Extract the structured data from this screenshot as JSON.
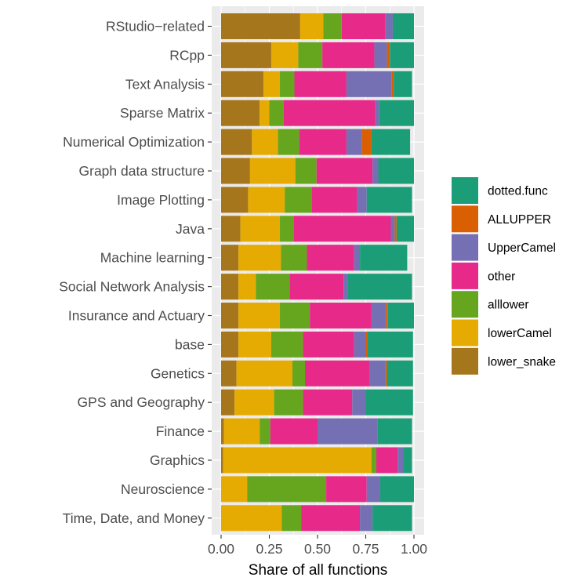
{
  "chart_data": {
    "type": "bar",
    "orientation": "horizontal",
    "stacked": true,
    "xlabel": "Share of all functions",
    "ylabel": "",
    "xlim": [
      0,
      1
    ],
    "x_ticks": [
      "0.00",
      "0.25",
      "0.50",
      "0.75",
      "1.00"
    ],
    "grid": true,
    "legend_position": "right",
    "categories": [
      "RStudio−related",
      "RCpp",
      "Text Analysis",
      "Sparse Matrix",
      "Numerical Optimization",
      "Graph data structure",
      "Image Plotting",
      "Java",
      "Machine learning",
      "Social Network Analysis",
      "Insurance and Actuary",
      "base",
      "Genetics",
      "GPS and Geography",
      "Finance",
      "Graphics",
      "Neuroscience",
      "Time, Date, and Money"
    ],
    "series": [
      {
        "name": "lower_snake",
        "color": "#A6761D",
        "values": [
          0.41,
          0.26,
          0.22,
          0.2,
          0.16,
          0.15,
          0.14,
          0.1,
          0.09,
          0.09,
          0.09,
          0.09,
          0.08,
          0.07,
          0.015,
          0.01,
          0.0,
          0.0
        ]
      },
      {
        "name": "lowerCamel",
        "color": "#E6AB02",
        "values": [
          0.12,
          0.14,
          0.085,
          0.05,
          0.135,
          0.235,
          0.19,
          0.205,
          0.22,
          0.09,
          0.215,
          0.17,
          0.29,
          0.205,
          0.185,
          0.77,
          0.135,
          0.315
        ]
      },
      {
        "name": "alllower",
        "color": "#66A61E",
        "values": [
          0.095,
          0.125,
          0.075,
          0.075,
          0.11,
          0.11,
          0.14,
          0.07,
          0.135,
          0.175,
          0.155,
          0.165,
          0.065,
          0.15,
          0.055,
          0.025,
          0.41,
          0.1
        ]
      },
      {
        "name": "other",
        "color": "#E7298A",
        "values": [
          0.225,
          0.27,
          0.27,
          0.475,
          0.245,
          0.29,
          0.235,
          0.505,
          0.245,
          0.28,
          0.32,
          0.265,
          0.335,
          0.255,
          0.245,
          0.11,
          0.21,
          0.305
        ]
      },
      {
        "name": "UpperCamel",
        "color": "#7570B3",
        "values": [
          0.04,
          0.065,
          0.235,
          0.02,
          0.08,
          0.03,
          0.05,
          0.02,
          0.03,
          0.02,
          0.075,
          0.06,
          0.08,
          0.07,
          0.31,
          0.03,
          0.07,
          0.065
        ]
      },
      {
        "name": "ALLUPPER",
        "color": "#D95F02",
        "values": [
          0.0,
          0.015,
          0.01,
          0.0,
          0.05,
          0.0,
          0.0,
          0.01,
          0.0,
          0.0,
          0.01,
          0.01,
          0.01,
          0.0,
          0.0,
          0.0,
          0.0,
          0.0
        ]
      },
      {
        "name": "dotted.func",
        "color": "#1B9E77",
        "values": [
          0.11,
          0.125,
          0.095,
          0.18,
          0.2,
          0.185,
          0.235,
          0.09,
          0.245,
          0.335,
          0.135,
          0.235,
          0.135,
          0.245,
          0.18,
          0.045,
          0.175,
          0.205
        ]
      }
    ],
    "legend_order": [
      "dotted.func",
      "ALLUPPER",
      "UpperCamel",
      "other",
      "alllower",
      "lowerCamel",
      "lower_snake"
    ]
  }
}
